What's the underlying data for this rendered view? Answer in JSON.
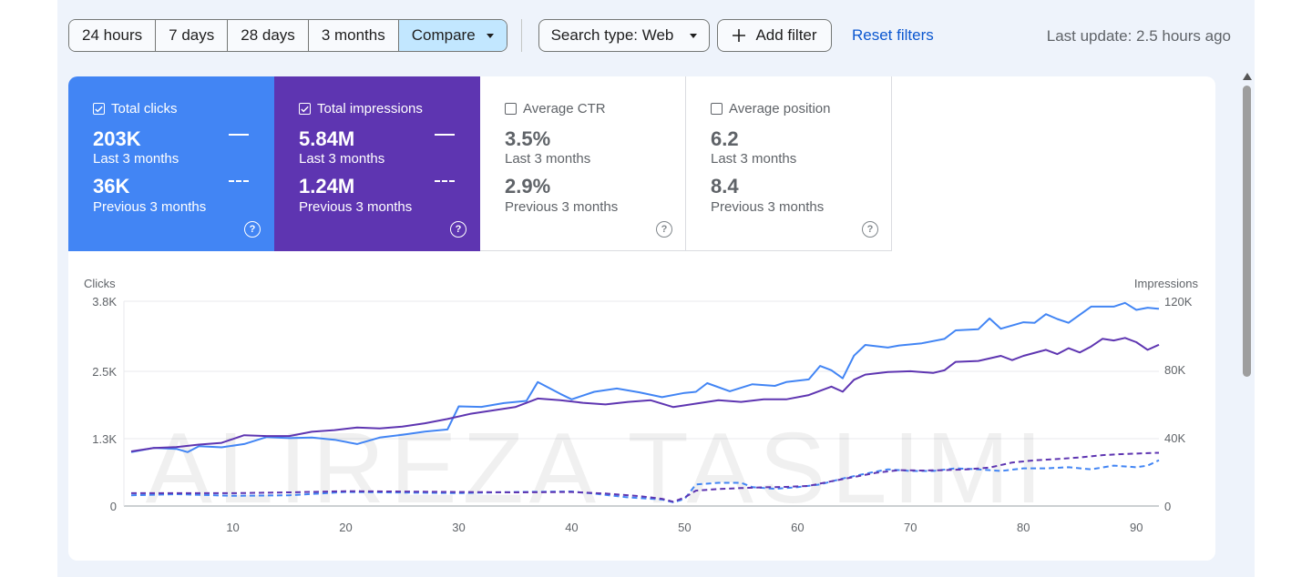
{
  "toolbar": {
    "date_ranges": [
      "24 hours",
      "7 days",
      "28 days",
      "3 months"
    ],
    "compare_label": "Compare",
    "search_type_label": "Search type: Web",
    "add_filter_label": "Add filter",
    "reset_filters_label": "Reset filters",
    "last_update": "Last update: 2.5 hours ago"
  },
  "metrics": [
    {
      "label": "Total clicks",
      "checked": true,
      "current_value": "203K",
      "current_period": "Last 3 months",
      "previous_value": "36K",
      "previous_period": "Previous 3 months",
      "color": "#4285f4"
    },
    {
      "label": "Total impressions",
      "checked": true,
      "current_value": "5.84M",
      "current_period": "Last 3 months",
      "previous_value": "1.24M",
      "previous_period": "Previous 3 months",
      "color": "#5e35b1"
    },
    {
      "label": "Average CTR",
      "checked": false,
      "current_value": "3.5%",
      "current_period": "Last 3 months",
      "previous_value": "2.9%",
      "previous_period": "Previous 3 months"
    },
    {
      "label": "Average position",
      "checked": false,
      "current_value": "6.2",
      "current_period": "Last 3 months",
      "previous_value": "8.4",
      "previous_period": "Previous 3 months"
    }
  ],
  "help_glyph": "?",
  "watermark": "ALIREZA TASLIMI",
  "chart_data": {
    "type": "line",
    "ylabel": "Clicks",
    "y2label": "Impressions",
    "ylim": [
      0,
      3800
    ],
    "y2lim": [
      0,
      120000
    ],
    "y_ticks": [
      "0",
      "1.3K",
      "2.5K",
      "3.8K"
    ],
    "y2_ticks": [
      "0",
      "40K",
      "80K",
      "120K"
    ],
    "x_ticks": [
      "10",
      "20",
      "30",
      "40",
      "50",
      "60",
      "70",
      "80",
      "90"
    ],
    "xlim": [
      1,
      92
    ],
    "grid": true,
    "series": [
      {
        "axis": "left",
        "style": "solid",
        "color": "#4285f4",
        "anchors": [
          [
            1,
            1000
          ],
          [
            3,
            1080
          ],
          [
            5,
            1060
          ],
          [
            6,
            1000
          ],
          [
            7,
            1110
          ],
          [
            9,
            1090
          ],
          [
            11,
            1150
          ],
          [
            13,
            1280
          ],
          [
            15,
            1260
          ],
          [
            17,
            1270
          ],
          [
            19,
            1230
          ],
          [
            21,
            1150
          ],
          [
            23,
            1270
          ],
          [
            25,
            1320
          ],
          [
            27,
            1380
          ],
          [
            29,
            1420
          ],
          [
            30,
            1850
          ],
          [
            32,
            1840
          ],
          [
            34,
            1910
          ],
          [
            36,
            1950
          ],
          [
            37,
            2300
          ],
          [
            39,
            2080
          ],
          [
            40,
            1980
          ],
          [
            42,
            2120
          ],
          [
            44,
            2180
          ],
          [
            46,
            2110
          ],
          [
            48,
            2020
          ],
          [
            50,
            2100
          ],
          [
            51,
            2120
          ],
          [
            52,
            2280
          ],
          [
            54,
            2130
          ],
          [
            56,
            2260
          ],
          [
            58,
            2230
          ],
          [
            59,
            2300
          ],
          [
            61,
            2350
          ],
          [
            62,
            2600
          ],
          [
            63,
            2520
          ],
          [
            64,
            2370
          ],
          [
            65,
            2790
          ],
          [
            66,
            2990
          ],
          [
            68,
            2940
          ],
          [
            69,
            2980
          ],
          [
            71,
            3020
          ],
          [
            73,
            3100
          ],
          [
            74,
            3260
          ],
          [
            76,
            3280
          ],
          [
            77,
            3480
          ],
          [
            78,
            3290
          ],
          [
            80,
            3410
          ],
          [
            81,
            3400
          ],
          [
            82,
            3560
          ],
          [
            83,
            3470
          ],
          [
            84,
            3400
          ],
          [
            86,
            3700
          ],
          [
            88,
            3700
          ],
          [
            89,
            3770
          ],
          [
            90,
            3640
          ],
          [
            91,
            3680
          ],
          [
            92,
            3660
          ]
        ]
      },
      {
        "axis": "right",
        "style": "solid",
        "color": "#5e35b1",
        "anchors": [
          [
            1,
            32000
          ],
          [
            3,
            34000
          ],
          [
            5,
            34500
          ],
          [
            7,
            36000
          ],
          [
            9,
            37000
          ],
          [
            11,
            41500
          ],
          [
            13,
            41000
          ],
          [
            15,
            41000
          ],
          [
            17,
            43500
          ],
          [
            19,
            44500
          ],
          [
            21,
            46000
          ],
          [
            23,
            45500
          ],
          [
            25,
            46500
          ],
          [
            27,
            48500
          ],
          [
            29,
            51000
          ],
          [
            31,
            54000
          ],
          [
            33,
            56000
          ],
          [
            35,
            58000
          ],
          [
            37,
            63000
          ],
          [
            39,
            62000
          ],
          [
            41,
            60500
          ],
          [
            43,
            59500
          ],
          [
            45,
            61000
          ],
          [
            47,
            62000
          ],
          [
            49,
            58000
          ],
          [
            51,
            60000
          ],
          [
            53,
            62000
          ],
          [
            55,
            61000
          ],
          [
            57,
            62500
          ],
          [
            59,
            62500
          ],
          [
            61,
            65000
          ],
          [
            63,
            70000
          ],
          [
            64,
            67000
          ],
          [
            65,
            74000
          ],
          [
            66,
            77000
          ],
          [
            68,
            78500
          ],
          [
            70,
            79000
          ],
          [
            72,
            78000
          ],
          [
            73,
            79500
          ],
          [
            74,
            84500
          ],
          [
            76,
            85000
          ],
          [
            78,
            88000
          ],
          [
            79,
            85500
          ],
          [
            80,
            88000
          ],
          [
            82,
            91500
          ],
          [
            83,
            89000
          ],
          [
            84,
            92500
          ],
          [
            85,
            90000
          ],
          [
            86,
            93500
          ],
          [
            87,
            98000
          ],
          [
            88,
            97000
          ],
          [
            89,
            98500
          ],
          [
            90,
            96000
          ],
          [
            91,
            91500
          ],
          [
            92,
            94500
          ]
        ]
      },
      {
        "axis": "left",
        "style": "dashed",
        "color": "#4285f4",
        "anchors": [
          [
            1,
            200
          ],
          [
            5,
            220
          ],
          [
            10,
            190
          ],
          [
            15,
            200
          ],
          [
            20,
            260
          ],
          [
            25,
            250
          ],
          [
            30,
            240
          ],
          [
            35,
            260
          ],
          [
            40,
            270
          ],
          [
            42,
            230
          ],
          [
            45,
            160
          ],
          [
            48,
            120
          ],
          [
            49,
            70
          ],
          [
            50,
            130
          ],
          [
            51,
            400
          ],
          [
            53,
            430
          ],
          [
            55,
            430
          ],
          [
            56,
            350
          ],
          [
            58,
            320
          ],
          [
            60,
            350
          ],
          [
            62,
            400
          ],
          [
            64,
            510
          ],
          [
            66,
            600
          ],
          [
            68,
            680
          ],
          [
            70,
            650
          ],
          [
            72,
            650
          ],
          [
            74,
            700
          ],
          [
            76,
            680
          ],
          [
            78,
            650
          ],
          [
            80,
            700
          ],
          [
            82,
            700
          ],
          [
            84,
            720
          ],
          [
            86,
            680
          ],
          [
            88,
            750
          ],
          [
            90,
            720
          ],
          [
            91,
            750
          ],
          [
            92,
            850
          ]
        ]
      },
      {
        "axis": "right",
        "style": "dashed",
        "color": "#5e35b1",
        "anchors": [
          [
            1,
            7500
          ],
          [
            5,
            7500
          ],
          [
            10,
            7500
          ],
          [
            15,
            8000
          ],
          [
            20,
            8700
          ],
          [
            25,
            8500
          ],
          [
            30,
            8200
          ],
          [
            35,
            8000
          ],
          [
            40,
            8200
          ],
          [
            43,
            7300
          ],
          [
            46,
            5800
          ],
          [
            48,
            4200
          ],
          [
            49,
            2500
          ],
          [
            50,
            5000
          ],
          [
            51,
            9000
          ],
          [
            53,
            10000
          ],
          [
            55,
            10500
          ],
          [
            57,
            11000
          ],
          [
            59,
            11200
          ],
          [
            61,
            11800
          ],
          [
            63,
            14500
          ],
          [
            65,
            17000
          ],
          [
            67,
            19500
          ],
          [
            69,
            21000
          ],
          [
            71,
            20800
          ],
          [
            73,
            21000
          ],
          [
            75,
            21500
          ],
          [
            77,
            22500
          ],
          [
            79,
            25500
          ],
          [
            81,
            26800
          ],
          [
            83,
            27500
          ],
          [
            85,
            28500
          ],
          [
            87,
            29800
          ],
          [
            89,
            30500
          ],
          [
            91,
            31000
          ],
          [
            92,
            31200
          ]
        ]
      }
    ]
  }
}
